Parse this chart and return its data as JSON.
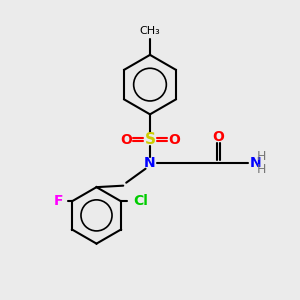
{
  "bg_color": "#ebebeb",
  "bond_color": "#000000",
  "atom_colors": {
    "N": "#0000ff",
    "O": "#ff0000",
    "S": "#cccc00",
    "F": "#ff00ff",
    "Cl": "#00cc00",
    "C": "#000000",
    "H": "#777777"
  },
  "font_size": 9,
  "line_width": 1.5
}
